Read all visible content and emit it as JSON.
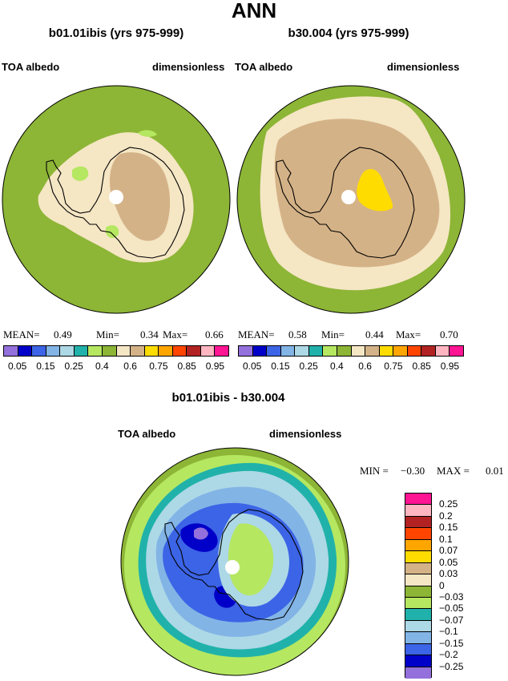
{
  "page_title": "ANN",
  "colors": {
    "green": "#8db536",
    "light_green": "#b5e761",
    "cream": "#f5e6c4",
    "tan": "#d4b287",
    "yellow": "#ffdc00",
    "pale_cyan": "#add8e6",
    "light_blue": "#82b4e6",
    "blue": "#3c64e6",
    "dark_blue": "#0000c8",
    "purple": "#9370db"
  },
  "panels": {
    "left": {
      "title": "b01.01ibis (yrs 975-999)",
      "variable": "TOA albedo",
      "units": "dimensionless",
      "stats": {
        "mean_label": "MEAN=",
        "mean": "0.49",
        "min_label": "Min=",
        "min": "0.34",
        "max_label": "Max=",
        "max": "0.66"
      }
    },
    "right": {
      "title": "b30.004 (yrs 975-999)",
      "variable": "TOA albedo",
      "units": "dimensionless",
      "stats": {
        "mean_label": "MEAN=",
        "mean": "0.58",
        "min_label": "Min=",
        "min": "0.44",
        "max_label": "Max=",
        "max": "0.70"
      }
    },
    "diff": {
      "title": "b01.01ibis - b30.004",
      "variable": "TOA albedo",
      "units": "dimensionless",
      "stats": {
        "min_label": "MIN =",
        "min": "−0.30",
        "max_label": "MAX =",
        "max": "0.01"
      }
    }
  },
  "legend_abs": {
    "colors": [
      "#9370db",
      "#0000c8",
      "#3c64e6",
      "#82b4e6",
      "#add8e6",
      "#20b2aa",
      "#b5e761",
      "#8db536",
      "#f5e6c4",
      "#d4b287",
      "#ffdc00",
      "#ffa500",
      "#ff4500",
      "#b22222",
      "#ffb6c1",
      "#ff1493"
    ],
    "tick_labels": [
      "0.05",
      "0.15",
      "0.25",
      "0.4",
      "0.6",
      "0.75",
      "0.85",
      "0.95"
    ]
  },
  "legend_diff": {
    "colors": [
      "#ff1493",
      "#ffb6c1",
      "#b22222",
      "#ff4500",
      "#ffa500",
      "#ffdc00",
      "#d4b287",
      "#f5e6c4",
      "#8db536",
      "#b5e761",
      "#20b2aa",
      "#add8e6",
      "#82b4e6",
      "#3c64e6",
      "#0000c8",
      "#9370db"
    ],
    "tick_labels": [
      "0.25",
      "0.2",
      "0.15",
      "0.1",
      "0.07",
      "0.05",
      "0.03",
      "0",
      "−0.03",
      "−0.05",
      "−0.07",
      "−0.1",
      "−0.15",
      "−0.2",
      "−0.25"
    ]
  }
}
